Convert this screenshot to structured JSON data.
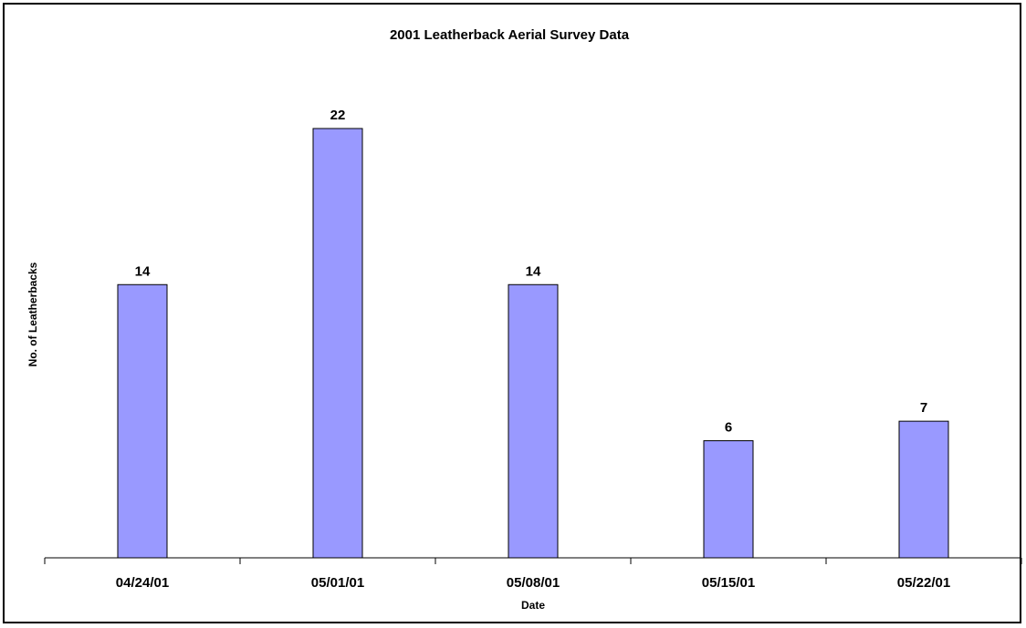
{
  "chart_data": {
    "type": "bar",
    "title": "2001 Leatherback Aerial Survey Data",
    "xlabel": "Date",
    "ylabel": "No. of Leatherbacks",
    "categories": [
      "04/24/01",
      "05/01/01",
      "05/08/01",
      "05/15/01",
      "05/22/01"
    ],
    "values": [
      14,
      22,
      14,
      6,
      7
    ],
    "data_labels": [
      "14",
      "22",
      "14",
      "6",
      "7"
    ],
    "ylim": [
      0,
      22
    ],
    "grid": false,
    "legend": "none",
    "bar_color": "#9999ff",
    "bar_edge_color": "#000000"
  }
}
